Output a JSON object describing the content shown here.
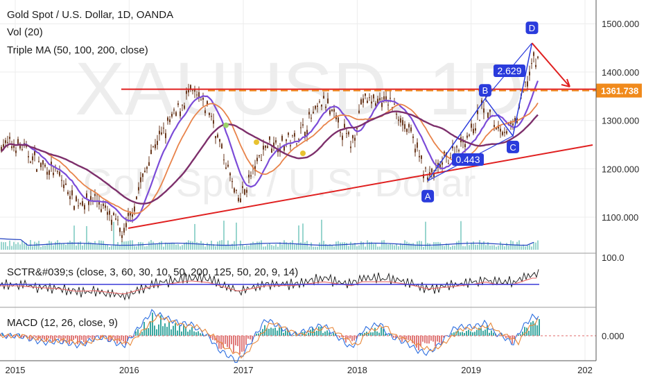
{
  "header": {
    "title": "Gold Spot / U.S. Dollar, 1D, OANDA",
    "vol": "Vol (20)",
    "ma": "Triple MA (50, 100, 200, close)"
  },
  "watermark": {
    "symbol": "XAUUSD, 1D",
    "name": "Gold Spot / U.S. Dollar"
  },
  "sctr_label": "SCTR&#039;s (close, 3, 60, 30, 10, 50, 200, 125, 50, 20, 9, 14)",
  "macd_label": "MACD (12, 26, close, 9)",
  "colors": {
    "candle": "#6b3a1f",
    "ma_fast": "#7b4bd8",
    "ma_mid": "#e8834a",
    "ma_slow": "#7d2f6b",
    "trend": "#e02020",
    "pattern": "#2a3bdc",
    "resistance": "#f08a1c",
    "volume": "#44b3a6",
    "sctr_ref": "#3a3ad8"
  },
  "chart_data": {
    "type": "line",
    "series": [
      {
        "name": "XAUUSD close",
        "x": [
          "2015-01",
          "2015-03",
          "2015-05",
          "2015-07",
          "2015-09",
          "2015-12",
          "2016-03",
          "2016-07",
          "2016-09",
          "2016-12",
          "2017-03",
          "2017-06",
          "2017-09",
          "2017-12",
          "2018-01",
          "2018-04",
          "2018-06",
          "2018-08",
          "2018-10",
          "2019-01",
          "2019-02",
          "2019-03",
          "2019-05",
          "2019-07"
        ],
        "y": [
          1250,
          1210,
          1190,
          1130,
          1140,
          1065,
          1240,
          1360,
          1320,
          1130,
          1250,
          1260,
          1340,
          1250,
          1340,
          1340,
          1280,
          1180,
          1220,
          1290,
          1340,
          1290,
          1280,
          1420
        ]
      }
    ],
    "patterns": [
      {
        "points": [
          {
            "label": "A",
            "x": "2018-08",
            "y": 1175
          },
          {
            "label": "B",
            "x": "2019-02",
            "y": 1345
          },
          {
            "label": "C",
            "x": "2019-05",
            "y": 1268
          },
          {
            "label": "D",
            "x": "2019-07",
            "y": 1460
          }
        ],
        "ratios": [
          "0.443",
          "2.629"
        ]
      }
    ],
    "resistance_level": 1361.738,
    "x_ticks": [
      "2015",
      "2016",
      "2017",
      "2018",
      "2019",
      "202"
    ],
    "y_ticks": [
      "1100.000",
      "1200.000",
      "1300.000",
      "1400.000",
      "1500.000"
    ],
    "sctr_ticks": [
      "100.0"
    ],
    "macd_ticks": [
      "0.000"
    ],
    "ylim": [
      1040,
      1540
    ]
  }
}
